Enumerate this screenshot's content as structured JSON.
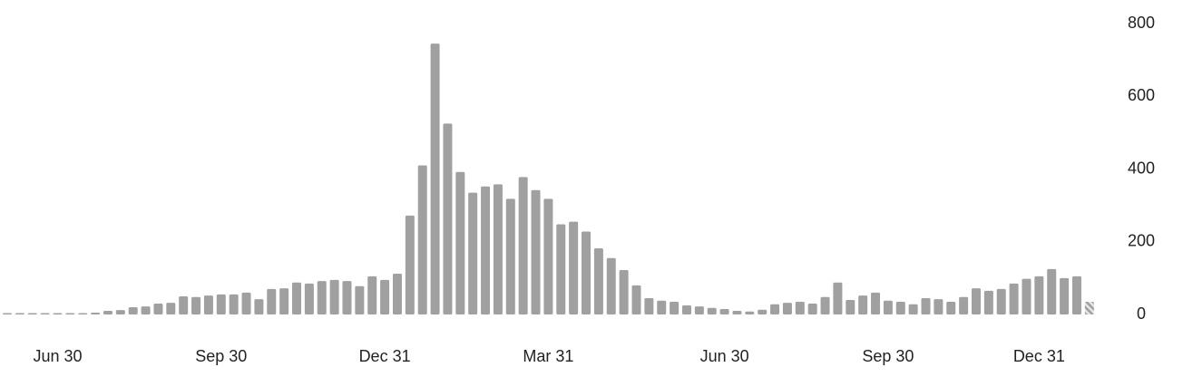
{
  "chart_data": {
    "type": "bar",
    "categories": [
      null,
      null,
      null,
      null,
      "Jun 30",
      null,
      null,
      null,
      null,
      null,
      null,
      null,
      null,
      null,
      null,
      null,
      null,
      "Sep 30",
      null,
      null,
      null,
      null,
      null,
      null,
      null,
      null,
      null,
      null,
      null,
      null,
      "Dec 31",
      null,
      null,
      null,
      null,
      null,
      null,
      null,
      null,
      null,
      null,
      null,
      null,
      "Mar 31",
      null,
      null,
      null,
      null,
      null,
      null,
      null,
      null,
      null,
      null,
      null,
      null,
      null,
      "Jun 30",
      null,
      null,
      null,
      null,
      null,
      null,
      null,
      null,
      null,
      null,
      null,
      null,
      "Sep 30",
      null,
      null,
      null,
      null,
      null,
      null,
      null,
      null,
      null,
      null,
      null,
      "Dec 31",
      null,
      null,
      null,
      null
    ],
    "values": [
      1,
      1,
      0,
      1,
      1,
      2,
      3,
      5,
      10,
      12,
      20,
      22,
      30,
      32,
      50,
      48,
      52,
      55,
      55,
      60,
      42,
      70,
      72,
      88,
      85,
      92,
      95,
      92,
      78,
      105,
      95,
      112,
      272,
      410,
      745,
      525,
      392,
      335,
      352,
      358,
      318,
      378,
      342,
      318,
      248,
      255,
      228,
      182,
      155,
      122,
      80,
      45,
      38,
      35,
      25,
      22,
      18,
      15,
      10,
      8,
      13,
      28,
      32,
      35,
      30,
      48,
      88,
      40,
      52,
      60,
      38,
      35,
      28,
      45,
      42,
      35,
      48,
      72,
      65,
      70,
      85,
      98,
      105,
      125,
      100,
      105,
      35
    ],
    "color": "#a0a0a0",
    "last_bar_hatched": true,
    "ylim": [
      0,
      800
    ],
    "yticks": [
      0,
      200,
      400,
      600,
      800
    ],
    "grid": false
  }
}
